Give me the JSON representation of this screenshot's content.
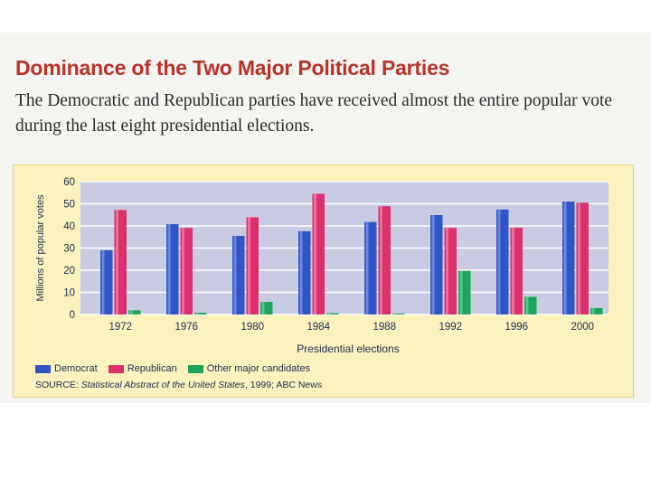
{
  "heading": "Dominance of the Two Major Political Parties",
  "intro": "The Democratic and Republican parties have received almost the entire popular vote during the last eight presidential elections.",
  "legend": [
    {
      "label": "Democrat",
      "color": "#2f56c4"
    },
    {
      "label": "Republican",
      "color": "#dd2f6b"
    },
    {
      "label": "Other major candidates",
      "color": "#1fa45c"
    }
  ],
  "source": {
    "prefix": "SOURCE:",
    "title": "Statistical Abstract of the United States",
    "suffix": ", 1999; ABC News"
  },
  "colors": {
    "plot_background": "#c8cbe2",
    "gridline": "#ffffff",
    "axis_text": "#1f2a55",
    "panel": "#fbf2bd",
    "heading": "#b9322a"
  },
  "chart_data": {
    "type": "bar",
    "title": "",
    "xlabel": "Presidential elections",
    "ylabel": "Millions of popular votes",
    "ylim": [
      0,
      60
    ],
    "yticks": [
      0,
      10,
      20,
      30,
      40,
      50,
      60
    ],
    "grid": true,
    "categories": [
      "1972",
      "1976",
      "1980",
      "1984",
      "1988",
      "1992",
      "1996",
      "2000"
    ],
    "series": [
      {
        "name": "Democrat",
        "values": [
          29,
          40.8,
          35.5,
          37.6,
          41.8,
          44.9,
          47.4,
          51
        ]
      },
      {
        "name": "Republican",
        "values": [
          47.2,
          39.1,
          43.9,
          54.5,
          48.9,
          39.1,
          39.2,
          50.5
        ]
      },
      {
        "name": "Other major candidates",
        "values": [
          1.9,
          0.8,
          5.7,
          0.6,
          0.4,
          19.7,
          8,
          2.9
        ]
      }
    ]
  }
}
